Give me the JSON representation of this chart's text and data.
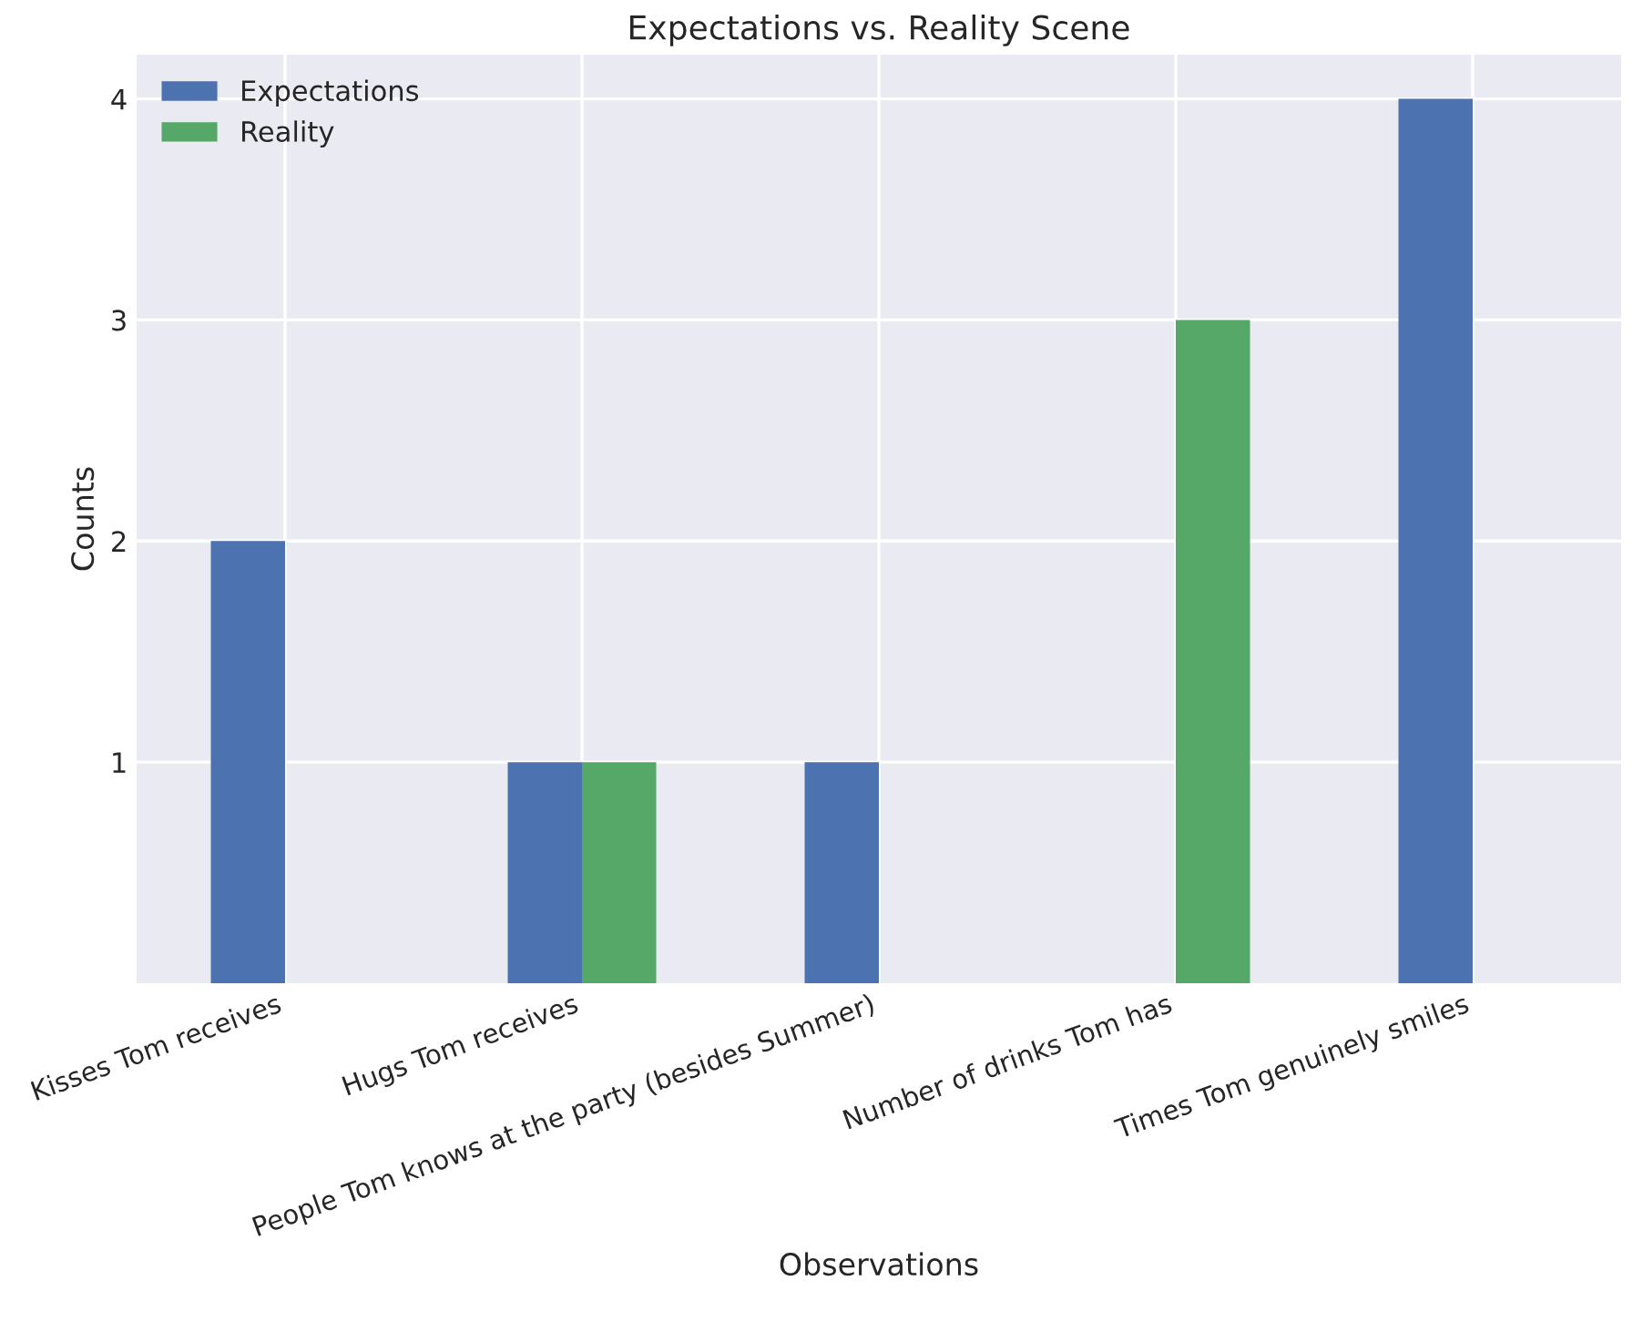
{
  "chart_data": {
    "type": "bar",
    "title": "Expectations vs. Reality Scene",
    "xlabel": "Observations",
    "ylabel": "Counts",
    "categories": [
      "Kisses Tom receives",
      "Hugs Tom receives",
      "People Tom knows at the party (besides Summer)",
      "Number of drinks Tom has",
      "Times Tom genuinely smiles"
    ],
    "series": [
      {
        "name": "Expectations",
        "color": "#4c72b0",
        "values": [
          2,
          1,
          1,
          0,
          4
        ]
      },
      {
        "name": "Reality",
        "color": "#55a868",
        "values": [
          0,
          1,
          0,
          3,
          0
        ]
      }
    ],
    "ylim": [
      0,
      4.2
    ],
    "yticks": [
      1,
      2,
      3,
      4
    ],
    "grid": true,
    "legend": "top left"
  }
}
